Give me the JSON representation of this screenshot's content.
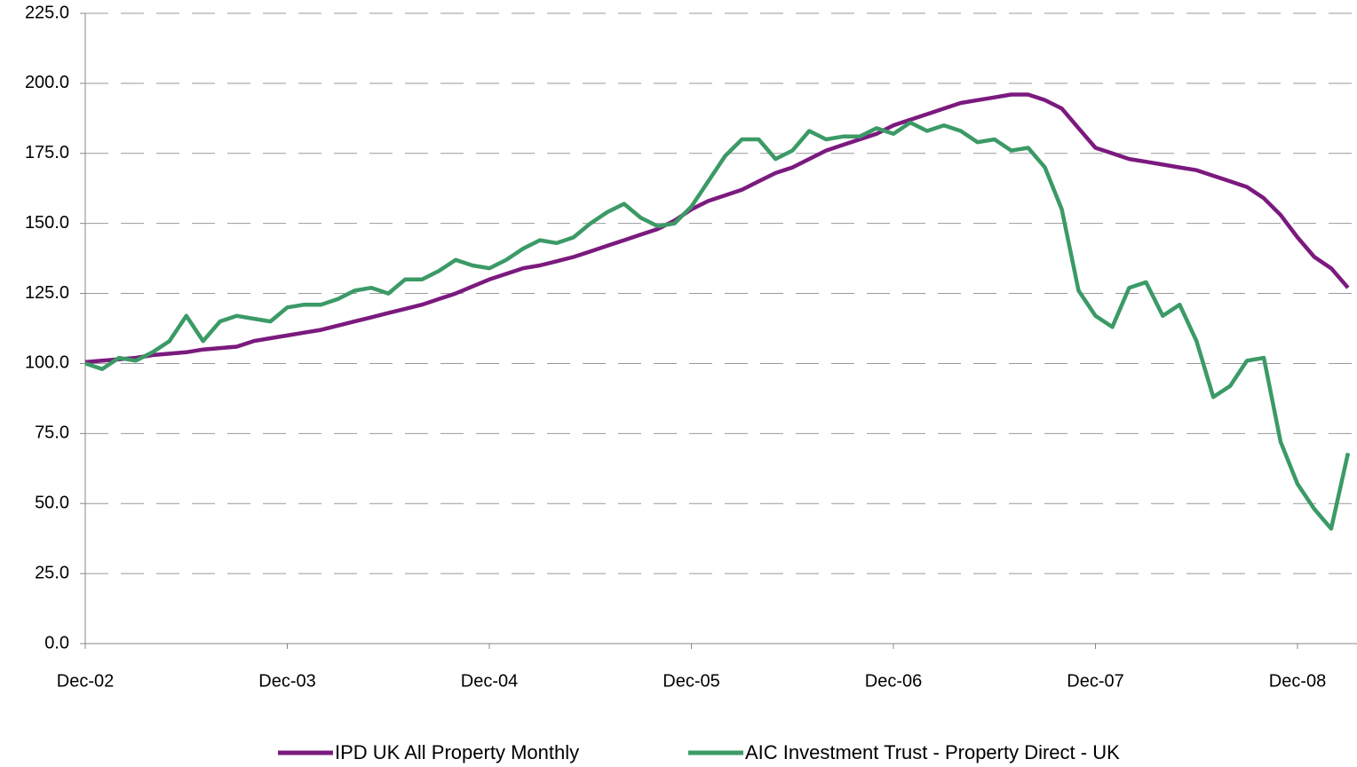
{
  "chart_data": {
    "type": "line",
    "categories": [
      "Dec-02",
      null,
      null,
      null,
      null,
      null,
      null,
      null,
      null,
      null,
      null,
      null,
      "Dec-03",
      null,
      null,
      null,
      null,
      null,
      null,
      null,
      null,
      null,
      null,
      null,
      "Dec-04",
      null,
      null,
      null,
      null,
      null,
      null,
      null,
      null,
      null,
      null,
      null,
      "Dec-05",
      null,
      null,
      null,
      null,
      null,
      null,
      null,
      null,
      null,
      null,
      null,
      "Dec-06",
      null,
      null,
      null,
      null,
      null,
      null,
      null,
      null,
      null,
      null,
      null,
      "Dec-07",
      null,
      null,
      null,
      null,
      null,
      null,
      null,
      null,
      null,
      null,
      null,
      "Dec-08",
      null,
      null,
      null
    ],
    "series": [
      {
        "name": "IPD UK All Property Monthly",
        "color": "#7b1a7e",
        "values": [
          100.5,
          101,
          101.5,
          102,
          103,
          103.5,
          104,
          105,
          105.5,
          106,
          108,
          109,
          110,
          111,
          112,
          113.5,
          115,
          116.5,
          118,
          119.5,
          121,
          123,
          125,
          127.5,
          130,
          132,
          134,
          135,
          136.5,
          138,
          140,
          142,
          144,
          146,
          148,
          151,
          155,
          158,
          160,
          162,
          165,
          168,
          170,
          173,
          176,
          178,
          180,
          182,
          185,
          187,
          189,
          191,
          193,
          194,
          195,
          196,
          196,
          194,
          191,
          184,
          177,
          175,
          173,
          172,
          171,
          170,
          169,
          167,
          165,
          163,
          159,
          153,
          145,
          138,
          134,
          127
        ]
      },
      {
        "name": "AIC Investment Trust - Property Direct - UK",
        "color": "#3b9a66",
        "values": [
          100,
          98,
          102,
          101,
          104,
          108,
          117,
          108,
          115,
          117,
          116,
          115,
          120,
          121,
          121,
          123,
          126,
          127,
          125,
          130,
          130,
          133,
          137,
          135,
          134,
          137,
          141,
          144,
          143,
          145,
          150,
          154,
          157,
          152,
          149,
          150,
          156,
          165,
          174,
          180,
          180,
          173,
          176,
          183,
          180,
          181,
          181,
          184,
          182,
          186,
          183,
          185,
          183,
          179,
          180,
          176,
          177,
          170,
          155,
          126,
          117,
          113,
          127,
          129,
          117,
          121,
          108,
          88,
          92,
          101,
          102,
          72,
          57,
          48,
          41,
          68
        ]
      }
    ],
    "ylim": [
      0,
      225
    ],
    "yticks": [
      {
        "value": 0,
        "label": "0.0"
      },
      {
        "value": 25,
        "label": "25.0"
      },
      {
        "value": 50,
        "label": "50.0"
      },
      {
        "value": 75,
        "label": "75.0"
      },
      {
        "value": 100,
        "label": "100.0"
      },
      {
        "value": 125,
        "label": "125.0"
      },
      {
        "value": 150,
        "label": "150.0"
      },
      {
        "value": 175,
        "label": "175.0"
      },
      {
        "value": 200,
        "label": "200.0"
      },
      {
        "value": 225,
        "label": "225.0"
      }
    ],
    "grid": true,
    "legend": "bottom"
  }
}
